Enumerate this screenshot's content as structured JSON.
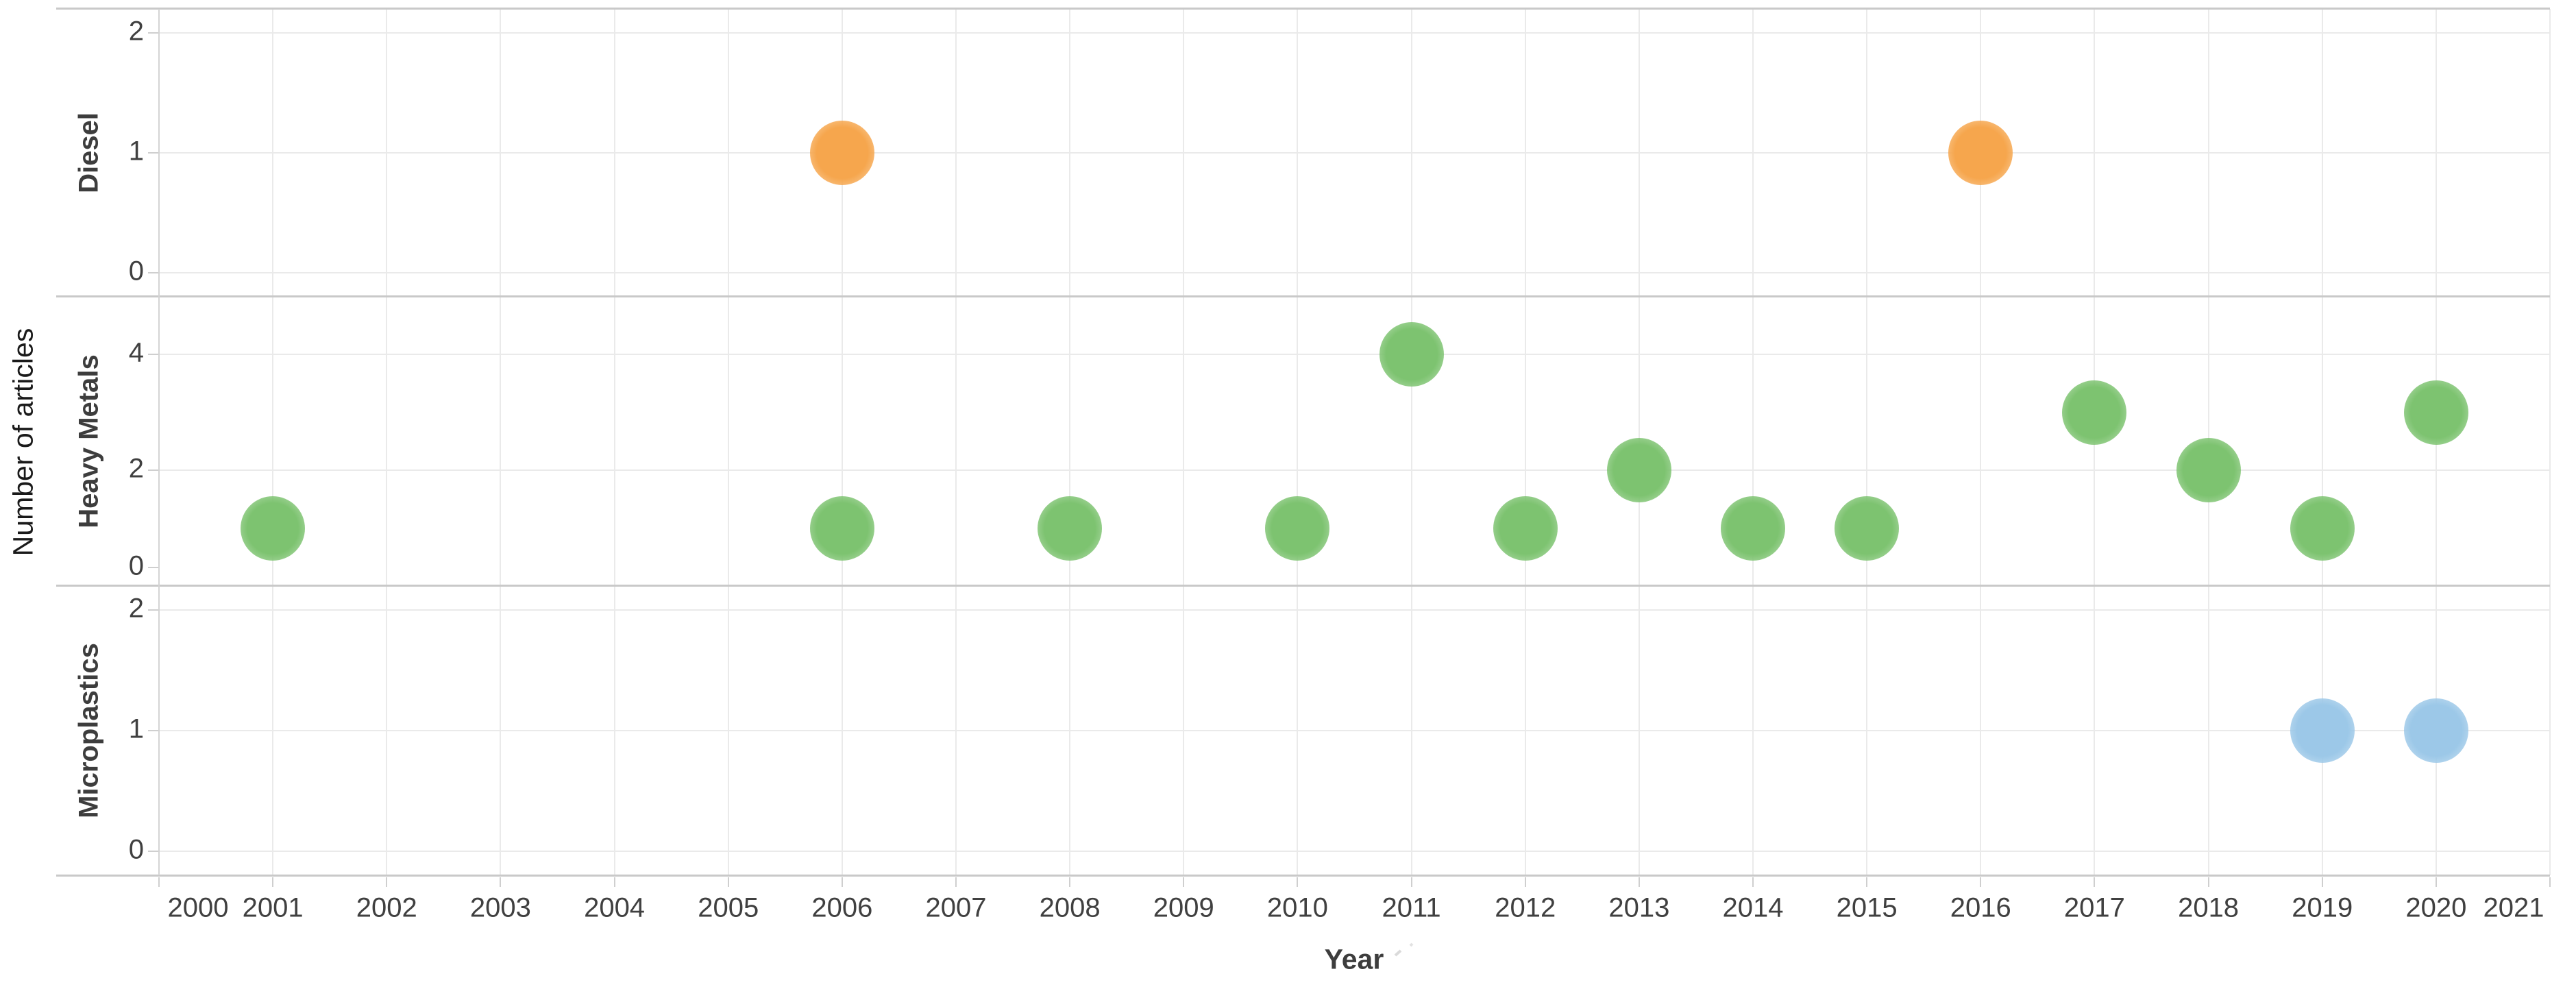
{
  "chart_data": {
    "type": "scatter",
    "title": "",
    "xlabel": "Year",
    "ylabel": "Number of articles",
    "x_domain": [
      2000,
      2021
    ],
    "x_ticks": [
      2000,
      2001,
      2002,
      2003,
      2004,
      2005,
      2006,
      2007,
      2008,
      2009,
      2010,
      2011,
      2012,
      2013,
      2014,
      2015,
      2016,
      2017,
      2018,
      2019,
      2020,
      2021
    ],
    "grid": true,
    "legend_position": "none",
    "panels": [
      {
        "label": "Diesel",
        "color": "#F6A64D",
        "y_domain": [
          -0.2,
          2.2
        ],
        "y_ticks": [
          0,
          1,
          2
        ],
        "points": [
          {
            "year": 2006,
            "value": 1
          },
          {
            "year": 2016,
            "value": 1
          }
        ]
      },
      {
        "label": "Heavy Metals",
        "color": "#7DC370",
        "y_domain": [
          0,
          5
        ],
        "y_ticks": [
          0,
          2,
          4
        ],
        "points": [
          {
            "year": 2001,
            "value": 1
          },
          {
            "year": 2006,
            "value": 1
          },
          {
            "year": 2008,
            "value": 1
          },
          {
            "year": 2010,
            "value": 1
          },
          {
            "year": 2011,
            "value": 4
          },
          {
            "year": 2012,
            "value": 1
          },
          {
            "year": 2013,
            "value": 2
          },
          {
            "year": 2014,
            "value": 1
          },
          {
            "year": 2015,
            "value": 1
          },
          {
            "year": 2017,
            "value": 3
          },
          {
            "year": 2018,
            "value": 2
          },
          {
            "year": 2019,
            "value": 1
          },
          {
            "year": 2020,
            "value": 3
          }
        ]
      },
      {
        "label": "Microplastics",
        "color": "#9CC8E8",
        "y_domain": [
          -0.2,
          2.2
        ],
        "y_ticks": [
          0,
          1,
          2
        ],
        "points": [
          {
            "year": 2019,
            "value": 1
          },
          {
            "year": 2020,
            "value": 1
          }
        ]
      }
    ],
    "colors": {
      "grid": "#eaeaea",
      "panel_border": "#c9c9c9",
      "axis_line": "#d4d4d4",
      "tick_mark": "#cfcfcf",
      "tick_text": "#404040",
      "label_text": "#3d3d3d"
    }
  }
}
